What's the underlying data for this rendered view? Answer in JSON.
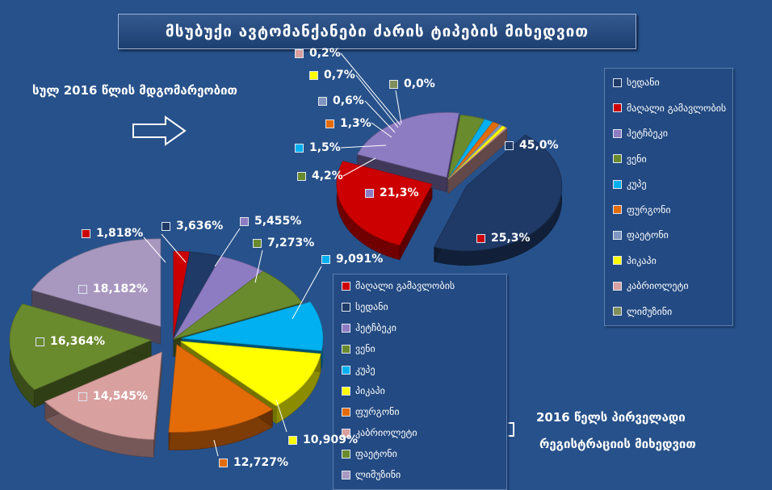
{
  "title": "მსუბუქი ავტომანქანები ძარის ტიპების მიხედვით",
  "note_total": "სულ 2016 წლის მდგომარეობით",
  "note_registration": [
    "2016 წელს პირველადი",
    "რეგისტრაციის მიხედვით"
  ],
  "icons": {
    "arrow_right": "arrow-right-outline-icon",
    "arrow_left": "arrow-left-outline-icon"
  },
  "chart_data": [
    {
      "type": "pie",
      "title": "სულ 2016 წლის მდგომარეობით",
      "categories": [
        "სედანი",
        "მაღალი გამავლობის",
        "ჰეტჩბეკი",
        "ვენი",
        "კუპე",
        "ფურგონი",
        "ფაეტონი",
        "პიკაპი",
        "კაბრიოლეტი",
        "ლიმუზინი"
      ],
      "values": [
        45.0,
        25.3,
        21.3,
        4.2,
        1.5,
        1.3,
        0.6,
        0.7,
        0.2,
        0.0
      ],
      "labels": [
        "45,0%",
        "25,3%",
        "21,3%",
        "4,2%",
        "1,5%",
        "1,3%",
        "0,6%",
        "0,7%",
        "0,2%",
        "0,0%"
      ],
      "colors": [
        "#1f3a66",
        "#cc0000",
        "#8e7cc3",
        "#6a8a2e",
        "#00b0f0",
        "#e36c09",
        "#8096c0",
        "#ffff00",
        "#d9a0a0",
        "#7f8f5a"
      ],
      "legend_position": "right"
    },
    {
      "type": "pie",
      "title": "2016 წელს პირველადი რეგისტრაციის მიხედვით",
      "categories": [
        "მაღალი გამავლობის",
        "სედანი",
        "ჰეტჩბეკი",
        "ვენი",
        "კუპე",
        "პიკაპი",
        "ფურგონი",
        "კაბრიოლეტი",
        "ფაეტონი",
        "ლიმუზინი"
      ],
      "values": [
        1.818,
        3.636,
        5.455,
        7.273,
        9.091,
        10.909,
        12.727,
        14.545,
        16.364,
        18.182
      ],
      "labels": [
        "1,818%",
        "3,636%",
        "5,455%",
        "7,273%",
        "9,091%",
        "10,909%",
        "12,727%",
        "14,545%",
        "16,364%",
        "18,182%"
      ],
      "colors": [
        "#cc0000",
        "#1f3a66",
        "#8e7cc3",
        "#6a8a2e",
        "#00b0f0",
        "#ffff00",
        "#e36c09",
        "#d9a0a0",
        "#6a8a2e",
        "#a898c0"
      ],
      "legend_position": "bottom-right"
    }
  ]
}
